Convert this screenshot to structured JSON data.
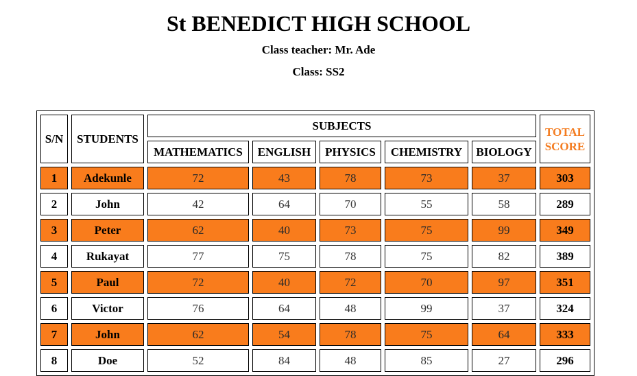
{
  "header": {
    "school_name": "St BENEDICT HIGH SCHOOL",
    "teacher_line": "Class teacher: Mr. Ade",
    "class_line": "Class: SS2"
  },
  "table": {
    "headers": {
      "sn": "S/N",
      "students": "STUDENTS",
      "subjects": "SUBJECTS",
      "total_line1": "TOTAL",
      "total_line2": "SCORE",
      "subject_names": [
        "MATHEMATICS",
        "ENGLISH",
        "PHYSICS",
        "CHEMISTRY",
        "BIOLOGY"
      ]
    },
    "highlight_color": "#f97c1c",
    "total_header_color": "#f47c20",
    "rows": [
      {
        "sn": "1",
        "name": "Adekunle",
        "scores": [
          "72",
          "43",
          "78",
          "73",
          "37"
        ],
        "total": "303",
        "highlight": true
      },
      {
        "sn": "2",
        "name": "John",
        "scores": [
          "42",
          "64",
          "70",
          "55",
          "58"
        ],
        "total": "289",
        "highlight": false
      },
      {
        "sn": "3",
        "name": "Peter",
        "scores": [
          "62",
          "40",
          "73",
          "75",
          "99"
        ],
        "total": "349",
        "highlight": true
      },
      {
        "sn": "4",
        "name": "Rukayat",
        "scores": [
          "77",
          "75",
          "78",
          "75",
          "82"
        ],
        "total": "389",
        "highlight": false
      },
      {
        "sn": "5",
        "name": "Paul",
        "scores": [
          "72",
          "40",
          "72",
          "70",
          "97"
        ],
        "total": "351",
        "highlight": true
      },
      {
        "sn": "6",
        "name": "Victor",
        "scores": [
          "76",
          "64",
          "48",
          "99",
          "37"
        ],
        "total": "324",
        "highlight": false
      },
      {
        "sn": "7",
        "name": "John",
        "scores": [
          "62",
          "54",
          "78",
          "75",
          "64"
        ],
        "total": "333",
        "highlight": true
      },
      {
        "sn": "8",
        "name": "Doe",
        "scores": [
          "52",
          "84",
          "48",
          "85",
          "27"
        ],
        "total": "296",
        "highlight": false
      }
    ]
  }
}
